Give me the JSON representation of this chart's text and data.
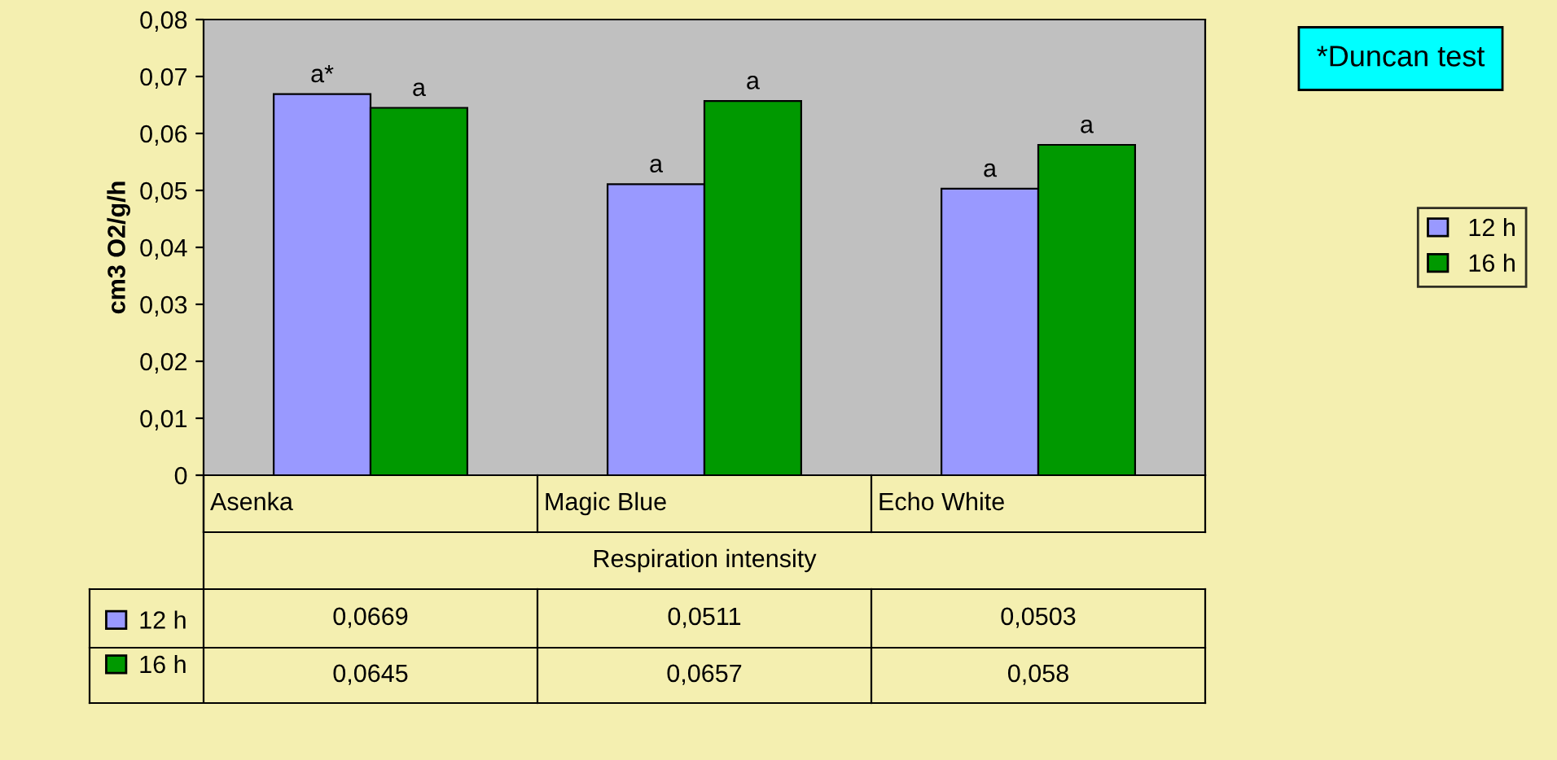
{
  "chart_data": {
    "type": "bar",
    "ylabel": "cm3 O2/g/h",
    "xlabel": "Respiration intensity",
    "categories": [
      "Asenka",
      "Magic Blue",
      "Echo White"
    ],
    "series": [
      {
        "name": "12 h",
        "color": "#9999ff",
        "values": [
          0.0669,
          0.0511,
          0.0503
        ],
        "value_labels": [
          "0,0669",
          "0,0511",
          "0,0503"
        ]
      },
      {
        "name": "16 h",
        "color": "#009900",
        "values": [
          0.0645,
          0.0657,
          0.058
        ],
        "value_labels": [
          "0,0645",
          "0,0657",
          "0,058"
        ]
      }
    ],
    "ylim": [
      0,
      0.08
    ],
    "yticks": [
      {
        "value": 0,
        "label": "0"
      },
      {
        "value": 0.01,
        "label": "0,01"
      },
      {
        "value": 0.02,
        "label": "0,02"
      },
      {
        "value": 0.03,
        "label": "0,03"
      },
      {
        "value": 0.04,
        "label": "0,04"
      },
      {
        "value": 0.05,
        "label": "0,05"
      },
      {
        "value": 0.06,
        "label": "0,06"
      },
      {
        "value": 0.07,
        "label": "0,07"
      },
      {
        "value": 0.08,
        "label": "0,08"
      }
    ],
    "annotations": [
      "*Duncan test",
      "a*",
      "a",
      "a",
      "a",
      "a",
      "a"
    ],
    "grid": false,
    "legend": "bottom left"
  }
}
